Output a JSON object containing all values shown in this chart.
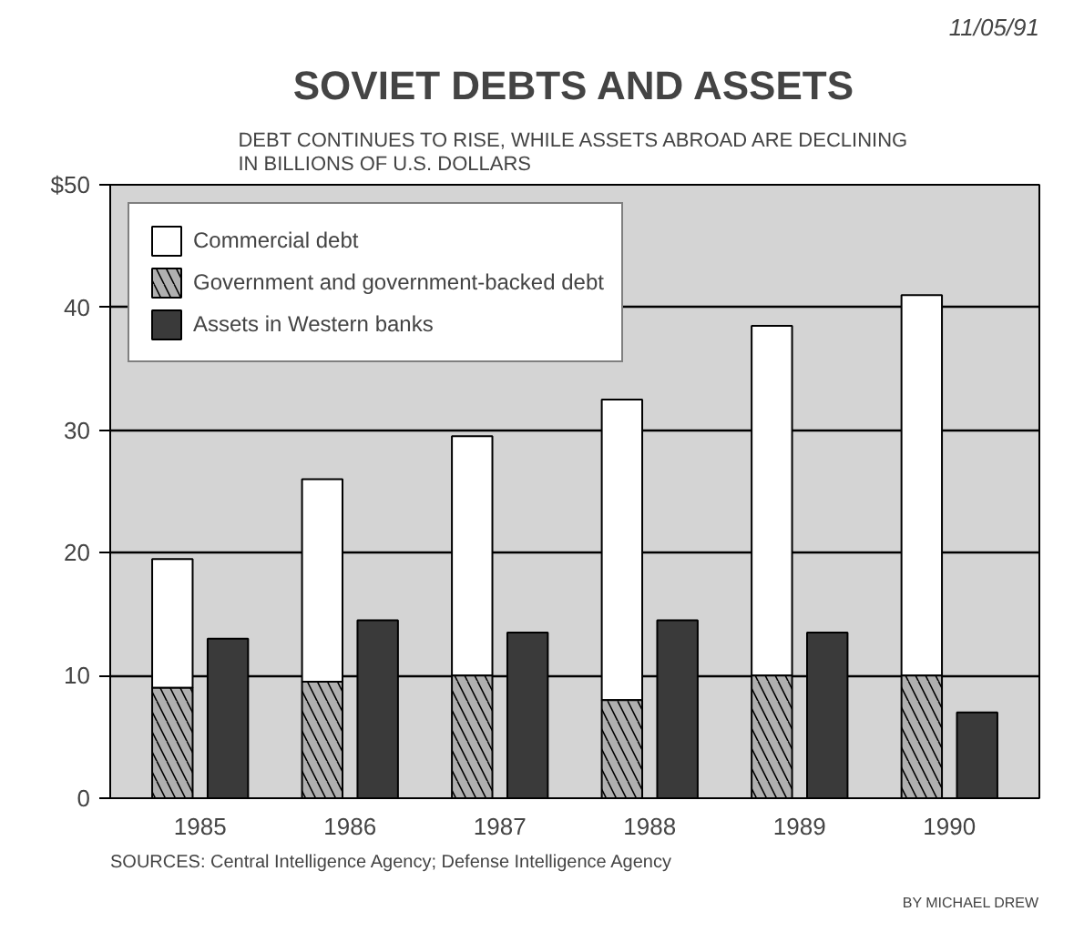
{
  "chart_data": {
    "type": "bar",
    "title": "SOVIET DEBTS AND ASSETS",
    "subtitle": "DEBT CONTINUES TO RISE, WHILE ASSETS ABROAD ARE DECLINING\nIN BILLIONS OF U.S. DOLLARS",
    "categories": [
      "1985",
      "1986",
      "1987",
      "1988",
      "1989",
      "1990"
    ],
    "series": [
      {
        "name": "Commercial debt",
        "color": "#ffffff",
        "values": [
          10.5,
          16.5,
          19.5,
          24.5,
          28.5,
          31
        ],
        "base": [
          9,
          9.5,
          10,
          8,
          10,
          10
        ]
      },
      {
        "name": "Government and government-backed debt",
        "color": "#b0b0b0",
        "values": [
          9,
          9.5,
          10,
          8,
          10,
          10
        ]
      },
      {
        "name": "Assets in Western banks",
        "color": "#3a3a3a",
        "values": [
          13,
          14.5,
          13.5,
          14.5,
          13.5,
          7
        ]
      }
    ],
    "ylim": [
      0,
      50
    ],
    "yticks": [
      0,
      10,
      20,
      30,
      40,
      {
        "value": 50,
        "label": "$50"
      }
    ],
    "grid": "y",
    "legend": "top left",
    "annotations": [
      "SOURCES: Central Intelligence Agency; Defense Intelligence Agency",
      "BY MICHAEL DREW",
      "11/05/91"
    ]
  }
}
